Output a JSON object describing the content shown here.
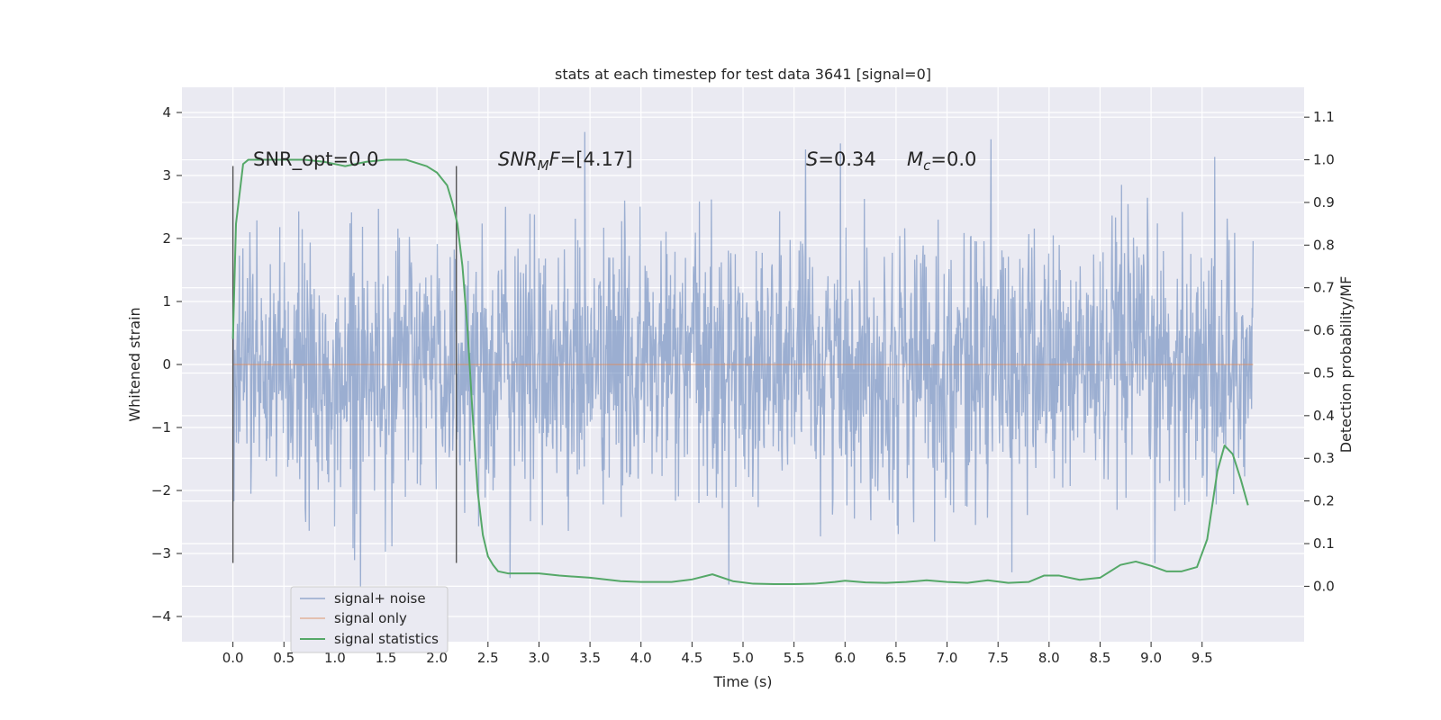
{
  "chart_data": {
    "type": "line",
    "title": "stats at each timestep for test data 3641 [signal=0]",
    "xlabel": "Time (s)",
    "ylabel_left": "Whitened strain",
    "ylabel_right": "Detection probability/MF",
    "xlim": [
      -0.5,
      10.5
    ],
    "ylim_left": [
      -4.4,
      4.4
    ],
    "ylim_right": [
      -0.13,
      1.17
    ],
    "x_ticks": [
      0.0,
      0.5,
      1.0,
      1.5,
      2.0,
      2.5,
      3.0,
      3.5,
      4.0,
      4.5,
      5.0,
      5.5,
      6.0,
      6.5,
      7.0,
      7.5,
      8.0,
      8.5,
      9.0,
      9.5
    ],
    "x_tick_labels": [
      "0.0",
      "0.5",
      "1.0",
      "1.5",
      "2.0",
      "2.5",
      "3.0",
      "3.5",
      "4.0",
      "4.5",
      "5.0",
      "5.5",
      "6.0",
      "6.5",
      "7.0",
      "7.5",
      "8.0",
      "8.5",
      "9.0",
      "9.5"
    ],
    "y_left_ticks": [
      4,
      3,
      2,
      1,
      0,
      -1,
      -2,
      -3,
      -4
    ],
    "y_left_tick_labels": [
      "4",
      "3",
      "2",
      "1",
      "0",
      "−1",
      "−2",
      "−3",
      "−4"
    ],
    "y_right_ticks": [
      1.1,
      1.0,
      0.9,
      0.8,
      0.7,
      0.6,
      0.5,
      0.4,
      0.3,
      0.2,
      0.1,
      0.0
    ],
    "y_right_tick_labels": [
      "1.1",
      "1.0",
      "0.9",
      "0.8",
      "0.7",
      "0.6",
      "0.5",
      "0.4",
      "0.3",
      "0.2",
      "0.1",
      "0.0"
    ],
    "grid": true,
    "legend_position": "lower-left",
    "annotations": {
      "snr_opt": "SNR_opt=0.0",
      "snr_mf_base": "SNR",
      "snr_mf_sub": "M",
      "snr_mf_tail": "F",
      "snr_mf_value": "=[4.17]",
      "s_symbol": "S",
      "s_value": "=0.34",
      "mc_symbol": "M",
      "mc_sub": "c",
      "mc_value": "=0.0"
    },
    "vertical_lines_x": [
      0.0,
      2.19
    ],
    "vertical_lines_range": [
      -3.15,
      3.15
    ],
    "series": [
      {
        "name": "signal+ noise",
        "axis": "left",
        "color": "#4c72b0",
        "kind": "noise",
        "x_range": [
          0.0,
          10.0
        ],
        "approx_std": 1.05,
        "approx_max": 4.05,
        "approx_min": -3.75
      },
      {
        "name": "signal only",
        "axis": "left",
        "color": "#dd8452",
        "kind": "line",
        "x": [
          0.0,
          10.0
        ],
        "values": [
          0.0,
          0.0
        ]
      },
      {
        "name": "signal statistics",
        "axis": "right",
        "color": "#55a868",
        "kind": "line",
        "x": [
          0.0,
          0.03,
          0.07,
          0.1,
          0.15,
          0.2,
          0.3,
          0.5,
          0.7,
          0.9,
          1.1,
          1.3,
          1.5,
          1.7,
          1.9,
          2.0,
          2.1,
          2.15,
          2.2,
          2.25,
          2.3,
          2.35,
          2.4,
          2.45,
          2.5,
          2.55,
          2.6,
          2.7,
          2.8,
          3.0,
          3.2,
          3.5,
          3.8,
          4.0,
          4.3,
          4.5,
          4.7,
          4.9,
          5.1,
          5.3,
          5.5,
          5.7,
          5.9,
          6.0,
          6.2,
          6.4,
          6.6,
          6.8,
          7.0,
          7.2,
          7.4,
          7.6,
          7.8,
          7.95,
          8.1,
          8.3,
          8.5,
          8.7,
          8.85,
          9.0,
          9.15,
          9.3,
          9.45,
          9.55,
          9.65,
          9.72,
          9.8,
          9.88,
          9.95
        ],
        "values": [
          0.58,
          0.85,
          0.93,
          0.99,
          1.0,
          1.0,
          1.0,
          1.0,
          1.0,
          0.995,
          0.985,
          0.995,
          1.0,
          1.0,
          0.985,
          0.97,
          0.94,
          0.9,
          0.85,
          0.75,
          0.6,
          0.4,
          0.22,
          0.12,
          0.07,
          0.05,
          0.035,
          0.03,
          0.03,
          0.03,
          0.025,
          0.02,
          0.012,
          0.01,
          0.01,
          0.016,
          0.028,
          0.012,
          0.006,
          0.005,
          0.005,
          0.006,
          0.01,
          0.013,
          0.009,
          0.008,
          0.01,
          0.014,
          0.01,
          0.008,
          0.014,
          0.008,
          0.01,
          0.025,
          0.025,
          0.015,
          0.02,
          0.05,
          0.058,
          0.048,
          0.035,
          0.035,
          0.045,
          0.11,
          0.27,
          0.33,
          0.31,
          0.25,
          0.19
        ]
      }
    ]
  }
}
